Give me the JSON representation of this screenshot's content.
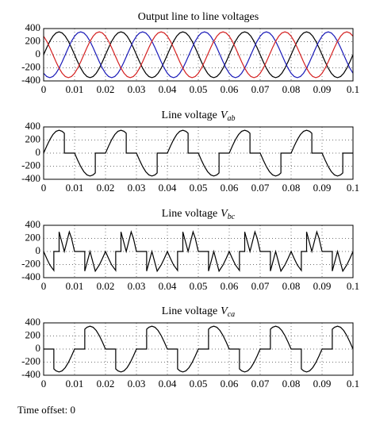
{
  "chart_data": [
    {
      "type": "line",
      "title": "Output line to line voltages",
      "x": [
        0,
        0.001,
        0.002,
        0.003,
        0.004,
        0.005,
        0.006,
        0.007,
        0.008,
        0.009,
        0.01,
        0.011,
        0.012,
        0.013,
        0.014,
        0.015,
        0.016,
        0.017,
        0.018,
        0.019,
        0.02,
        0.021,
        0.022,
        0.023,
        0.024,
        0.025,
        0.026,
        0.027,
        0.028,
        0.029,
        0.03,
        0.031,
        0.032,
        0.033,
        0.034,
        0.035,
        0.036,
        0.037,
        0.038,
        0.039,
        0.04,
        0.041,
        0.042,
        0.043,
        0.044,
        0.045,
        0.046,
        0.047,
        0.048,
        0.049,
        0.05,
        0.051,
        0.052,
        0.053,
        0.054,
        0.055,
        0.056,
        0.057,
        0.058,
        0.059,
        0.06,
        0.061,
        0.062,
        0.063,
        0.064,
        0.065,
        0.066,
        0.067,
        0.068,
        0.069,
        0.07,
        0.071,
        0.072,
        0.073,
        0.074,
        0.075,
        0.076,
        0.077,
        0.078,
        0.079,
        0.08,
        0.081,
        0.082,
        0.083,
        0.084,
        0.085,
        0.086,
        0.087,
        0.088,
        0.089,
        0.09,
        0.091,
        0.092,
        0.093,
        0.094,
        0.095,
        0.096,
        0.097,
        0.098,
        0.099,
        0.1
      ],
      "series": [
        {
          "color": "#000000",
          "values": [
            0,
            108,
            206,
            283,
            333,
            350,
            333,
            283,
            206,
            108,
            0,
            -108,
            -206,
            -283,
            -333,
            -350,
            -333,
            -283,
            -206,
            -108,
            0,
            108,
            206,
            283,
            333,
            350,
            333,
            283,
            206,
            108,
            0,
            -108,
            -206,
            -283,
            -333,
            -350,
            -333,
            -283,
            -206,
            -108,
            0,
            108,
            206,
            283,
            333,
            350,
            333,
            283,
            206,
            108,
            0,
            -108,
            -206,
            -283,
            -333,
            -350,
            -333,
            -283,
            -206,
            -108,
            0,
            108,
            206,
            283,
            333,
            350,
            333,
            283,
            206,
            108,
            0,
            -108,
            -206,
            -283,
            -333,
            -350,
            -333,
            -283,
            -206,
            -108,
            0,
            108,
            206,
            283,
            333,
            350,
            333,
            283,
            206,
            108,
            0,
            -108,
            -206,
            -283,
            -333,
            -350,
            -333,
            -283,
            -206,
            -108,
            0
          ]
        },
        {
          "color": "#1a1ab8",
          "values": [
            -283,
            -333,
            -350,
            -333,
            -283,
            -206,
            -108,
            0,
            108,
            206,
            283,
            333,
            350,
            333,
            283,
            206,
            108,
            0,
            -108,
            -206,
            -283,
            -333,
            -350,
            -333,
            -283,
            -206,
            -108,
            0,
            108,
            206,
            283,
            333,
            350,
            333,
            283,
            206,
            108,
            0,
            -108,
            -206,
            -283,
            -333,
            -350,
            -333,
            -283,
            -206,
            -108,
            0,
            108,
            206,
            283,
            333,
            350,
            333,
            283,
            206,
            108,
            0,
            -108,
            -206,
            -283,
            -333,
            -350,
            -333,
            -283,
            -206,
            -108,
            0,
            108,
            206,
            283,
            333,
            350,
            333,
            283,
            206,
            108,
            0,
            -108,
            -206,
            -283,
            -333,
            -350,
            -333,
            -283,
            -206,
            -108,
            0,
            108,
            206,
            283,
            333,
            350,
            333,
            283,
            206,
            108,
            0,
            -108,
            -206,
            -283
          ]
        },
        {
          "color": "#d42020",
          "values": [
            283,
            206,
            108,
            0,
            -108,
            -206,
            -283,
            -333,
            -350,
            -333,
            -283,
            -206,
            -108,
            0,
            108,
            206,
            283,
            333,
            350,
            333,
            283,
            206,
            108,
            0,
            -108,
            -206,
            -283,
            -333,
            -350,
            -333,
            -283,
            -206,
            -108,
            0,
            108,
            206,
            283,
            333,
            350,
            333,
            283,
            206,
            108,
            0,
            -108,
            -206,
            -283,
            -333,
            -350,
            -333,
            -283,
            -206,
            -108,
            0,
            108,
            206,
            283,
            333,
            350,
            333,
            283,
            206,
            108,
            0,
            -108,
            -206,
            -283,
            -333,
            -350,
            -333,
            -283,
            -206,
            -108,
            0,
            108,
            206,
            283,
            333,
            350,
            333,
            283,
            206,
            108,
            0,
            -108,
            -206,
            -283,
            -333,
            -350,
            -333,
            -283,
            -206,
            -108,
            0,
            108,
            206,
            283,
            333,
            350,
            333,
            283
          ]
        }
      ],
      "xlim": [
        0,
        0.1
      ],
      "ylim": [
        -400,
        400
      ],
      "xticks": [
        0,
        0.01,
        0.02,
        0.03,
        0.04,
        0.05,
        0.06,
        0.07,
        0.08,
        0.09,
        0.1
      ],
      "yticks": [
        -400,
        -200,
        0,
        200,
        400
      ],
      "grid": true
    },
    {
      "type": "line",
      "title": "Line voltage",
      "title_symbol": "V",
      "title_subscript": "ab",
      "x": [
        0,
        0.001,
        0.002,
        0.003,
        0.004,
        0.005,
        0.006,
        0.0067,
        0.0067,
        0.01,
        0.011,
        0.012,
        0.013,
        0.014,
        0.015,
        0.016,
        0.0167,
        0.0167,
        0.02,
        0.021,
        0.022,
        0.023,
        0.024,
        0.025,
        0.026,
        0.0267,
        0.0267,
        0.03,
        0.031,
        0.032,
        0.033,
        0.034,
        0.035,
        0.036,
        0.0367,
        0.0367,
        0.04,
        0.041,
        0.042,
        0.043,
        0.044,
        0.045,
        0.046,
        0.0467,
        0.0467,
        0.05,
        0.051,
        0.052,
        0.053,
        0.054,
        0.055,
        0.056,
        0.0567,
        0.0567,
        0.06,
        0.061,
        0.062,
        0.063,
        0.064,
        0.065,
        0.066,
        0.0667,
        0.0667,
        0.07,
        0.071,
        0.072,
        0.073,
        0.074,
        0.075,
        0.076,
        0.0767,
        0.0767,
        0.08,
        0.081,
        0.082,
        0.083,
        0.084,
        0.085,
        0.086,
        0.0867,
        0.0867,
        0.09,
        0.091,
        0.092,
        0.093,
        0.094,
        0.095,
        0.096,
        0.0967,
        0.0967,
        0.1
      ],
      "series": [
        {
          "color": "#000000",
          "values": [
            0,
            108,
            206,
            283,
            333,
            350,
            333,
            303,
            0,
            0,
            -108,
            -206,
            -283,
            -333,
            -350,
            -333,
            -303,
            0,
            0,
            108,
            206,
            283,
            333,
            350,
            333,
            303,
            0,
            0,
            -108,
            -206,
            -283,
            -333,
            -350,
            -333,
            -303,
            0,
            0,
            108,
            206,
            283,
            333,
            350,
            333,
            303,
            0,
            0,
            -108,
            -206,
            -283,
            -333,
            -350,
            -333,
            -303,
            0,
            0,
            108,
            206,
            283,
            333,
            350,
            333,
            303,
            0,
            0,
            -108,
            -206,
            -283,
            -333,
            -350,
            -333,
            -303,
            0,
            0,
            108,
            206,
            283,
            333,
            350,
            333,
            303,
            0,
            0,
            -108,
            -206,
            -283,
            -333,
            -350,
            -333,
            -303,
            0,
            0
          ]
        }
      ],
      "xlim": [
        0,
        0.1
      ],
      "ylim": [
        -400,
        400
      ],
      "xticks": [
        0,
        0.01,
        0.02,
        0.03,
        0.04,
        0.05,
        0.06,
        0.07,
        0.08,
        0.09,
        0.1
      ],
      "yticks": [
        -400,
        -200,
        0,
        200,
        400
      ],
      "grid": true
    },
    {
      "type": "line",
      "title": "Line voltage",
      "title_symbol": "V",
      "title_subscript": "bc",
      "x": [
        0,
        0.001,
        0.002,
        0.0033,
        0.0033,
        0.005,
        0.005,
        0.0067,
        0.0083,
        0.009,
        0.01,
        0.0133,
        0.0133,
        0.015,
        0.0167,
        0.018,
        0.019,
        0.02,
        0.021,
        0.022,
        0.0233,
        0.0233,
        0.025,
        0.025,
        0.0267,
        0.0283,
        0.029,
        0.03,
        0.0333,
        0.0333,
        0.035,
        0.0367,
        0.038,
        0.039,
        0.04,
        0.041,
        0.042,
        0.0433,
        0.0433,
        0.045,
        0.045,
        0.0467,
        0.0483,
        0.049,
        0.05,
        0.0533,
        0.0533,
        0.055,
        0.0567,
        0.058,
        0.059,
        0.06,
        0.061,
        0.062,
        0.0633,
        0.0633,
        0.065,
        0.065,
        0.0667,
        0.0683,
        0.069,
        0.07,
        0.0733,
        0.0733,
        0.075,
        0.0767,
        0.078,
        0.079,
        0.08,
        0.081,
        0.082,
        0.0833,
        0.0833,
        0.085,
        0.085,
        0.0867,
        0.0883,
        0.089,
        0.09,
        0.0933,
        0.0933,
        0.095,
        0.0967,
        0.098,
        0.099,
        0.1
      ],
      "series": [
        {
          "color": "#000000",
          "values": [
            0,
            -108,
            -206,
            -290,
            0,
            0,
            300,
            0,
            300,
            206,
            0,
            0,
            -300,
            0,
            -300,
            -206,
            -108,
            0,
            -108,
            -206,
            -290,
            0,
            0,
            300,
            0,
            300,
            206,
            0,
            0,
            -300,
            0,
            -300,
            -206,
            -108,
            0,
            -108,
            -206,
            -290,
            0,
            0,
            300,
            0,
            300,
            206,
            0,
            0,
            -300,
            0,
            -300,
            -206,
            -108,
            0,
            -108,
            -206,
            -290,
            0,
            0,
            300,
            0,
            300,
            206,
            0,
            0,
            -300,
            0,
            -300,
            -206,
            -108,
            0,
            -108,
            -206,
            -290,
            0,
            0,
            300,
            0,
            300,
            206,
            0,
            0,
            -300,
            0,
            -300,
            -206,
            -108,
            0
          ]
        }
      ],
      "xlim": [
        0,
        0.1
      ],
      "ylim": [
        -400,
        400
      ],
      "xticks": [
        0,
        0.01,
        0.02,
        0.03,
        0.04,
        0.05,
        0.06,
        0.07,
        0.08,
        0.09,
        0.1
      ],
      "yticks": [
        -400,
        -200,
        0,
        200,
        400
      ],
      "grid": true
    },
    {
      "type": "line",
      "title": "Line voltage",
      "title_symbol": "V",
      "title_subscript": "ca",
      "x": [
        0,
        0.0033,
        0.0033,
        0.004,
        0.005,
        0.006,
        0.007,
        0.008,
        0.009,
        0.01,
        0.0133,
        0.0133,
        0.014,
        0.015,
        0.016,
        0.017,
        0.018,
        0.019,
        0.02,
        0.0233,
        0.0233,
        0.024,
        0.025,
        0.026,
        0.027,
        0.028,
        0.029,
        0.03,
        0.0333,
        0.0333,
        0.034,
        0.035,
        0.036,
        0.037,
        0.038,
        0.039,
        0.04,
        0.0433,
        0.0433,
        0.044,
        0.045,
        0.046,
        0.047,
        0.048,
        0.049,
        0.05,
        0.0533,
        0.0533,
        0.054,
        0.055,
        0.056,
        0.057,
        0.058,
        0.059,
        0.06,
        0.0633,
        0.0633,
        0.064,
        0.065,
        0.066,
        0.067,
        0.068,
        0.069,
        0.07,
        0.0733,
        0.0733,
        0.074,
        0.075,
        0.076,
        0.077,
        0.078,
        0.079,
        0.08,
        0.0833,
        0.0833,
        0.084,
        0.085,
        0.086,
        0.087,
        0.088,
        0.089,
        0.09,
        0.0933,
        0.0933,
        0.094,
        0.095,
        0.096,
        0.097,
        0.098,
        0.099,
        0.1
      ],
      "series": [
        {
          "color": "#000000",
          "values": [
            0,
            0,
            -303,
            -333,
            -350,
            -333,
            -283,
            -206,
            -108,
            0,
            0,
            303,
            333,
            350,
            333,
            283,
            206,
            108,
            0,
            0,
            -303,
            -333,
            -350,
            -333,
            -283,
            -206,
            -108,
            0,
            0,
            303,
            333,
            350,
            333,
            283,
            206,
            108,
            0,
            0,
            -303,
            -333,
            -350,
            -333,
            -283,
            -206,
            -108,
            0,
            0,
            303,
            333,
            350,
            333,
            283,
            206,
            108,
            0,
            0,
            -303,
            -333,
            -350,
            -333,
            -283,
            -206,
            -108,
            0,
            0,
            303,
            333,
            350,
            333,
            283,
            206,
            108,
            0,
            0,
            -303,
            -333,
            -350,
            -333,
            -283,
            -206,
            -108,
            0,
            0,
            303,
            333,
            350,
            333,
            283,
            206,
            108,
            0
          ]
        }
      ],
      "xlim": [
        0,
        0.1
      ],
      "ylim": [
        -400,
        400
      ],
      "xticks": [
        0,
        0.01,
        0.02,
        0.03,
        0.04,
        0.05,
        0.06,
        0.07,
        0.08,
        0.09,
        0.1
      ],
      "yticks": [
        -400,
        -200,
        0,
        200,
        400
      ],
      "grid": true
    }
  ],
  "caption": "Time offset: 0"
}
